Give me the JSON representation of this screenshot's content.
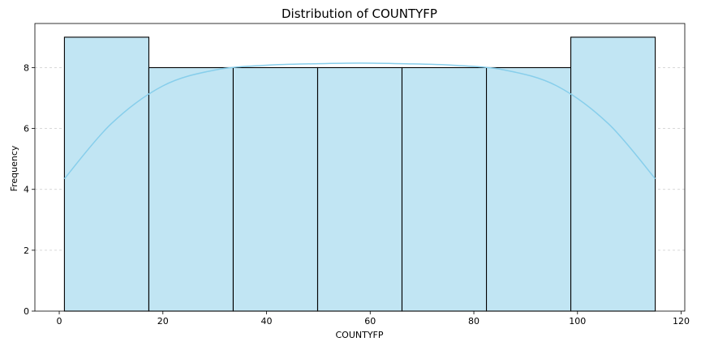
{
  "chart_data": {
    "type": "histogram",
    "title": "Distribution of COUNTYFP",
    "xlabel": "COUNTYFP",
    "ylabel": "Frequency",
    "xlim": [
      -4.7,
      120.7
    ],
    "ylim": [
      0,
      9.45
    ],
    "xticks": [
      0,
      20,
      40,
      60,
      80,
      100,
      120
    ],
    "yticks": [
      0,
      2,
      4,
      6,
      8
    ],
    "grid": "y-dashed",
    "bins": [
      {
        "start": 1,
        "end": 17.29,
        "count": 9
      },
      {
        "start": 17.29,
        "end": 33.57,
        "count": 8
      },
      {
        "start": 33.57,
        "end": 49.86,
        "count": 8
      },
      {
        "start": 49.86,
        "end": 66.14,
        "count": 8
      },
      {
        "start": 66.14,
        "end": 82.43,
        "count": 8
      },
      {
        "start": 82.43,
        "end": 98.71,
        "count": 8
      },
      {
        "start": 98.71,
        "end": 115,
        "count": 9
      }
    ],
    "kde": {
      "x": [
        1,
        10,
        20,
        30,
        40,
        50,
        58,
        66,
        76,
        86,
        96,
        106,
        115
      ],
      "y": [
        4.35,
        6.15,
        7.4,
        7.92,
        8.08,
        8.13,
        8.15,
        8.13,
        8.08,
        7.92,
        7.4,
        6.15,
        4.35
      ]
    },
    "colors": {
      "bar_fill": "#c1e5f3",
      "bar_edge": "#000000",
      "kde_line": "#87ceeb",
      "grid": "#cccccc"
    }
  }
}
